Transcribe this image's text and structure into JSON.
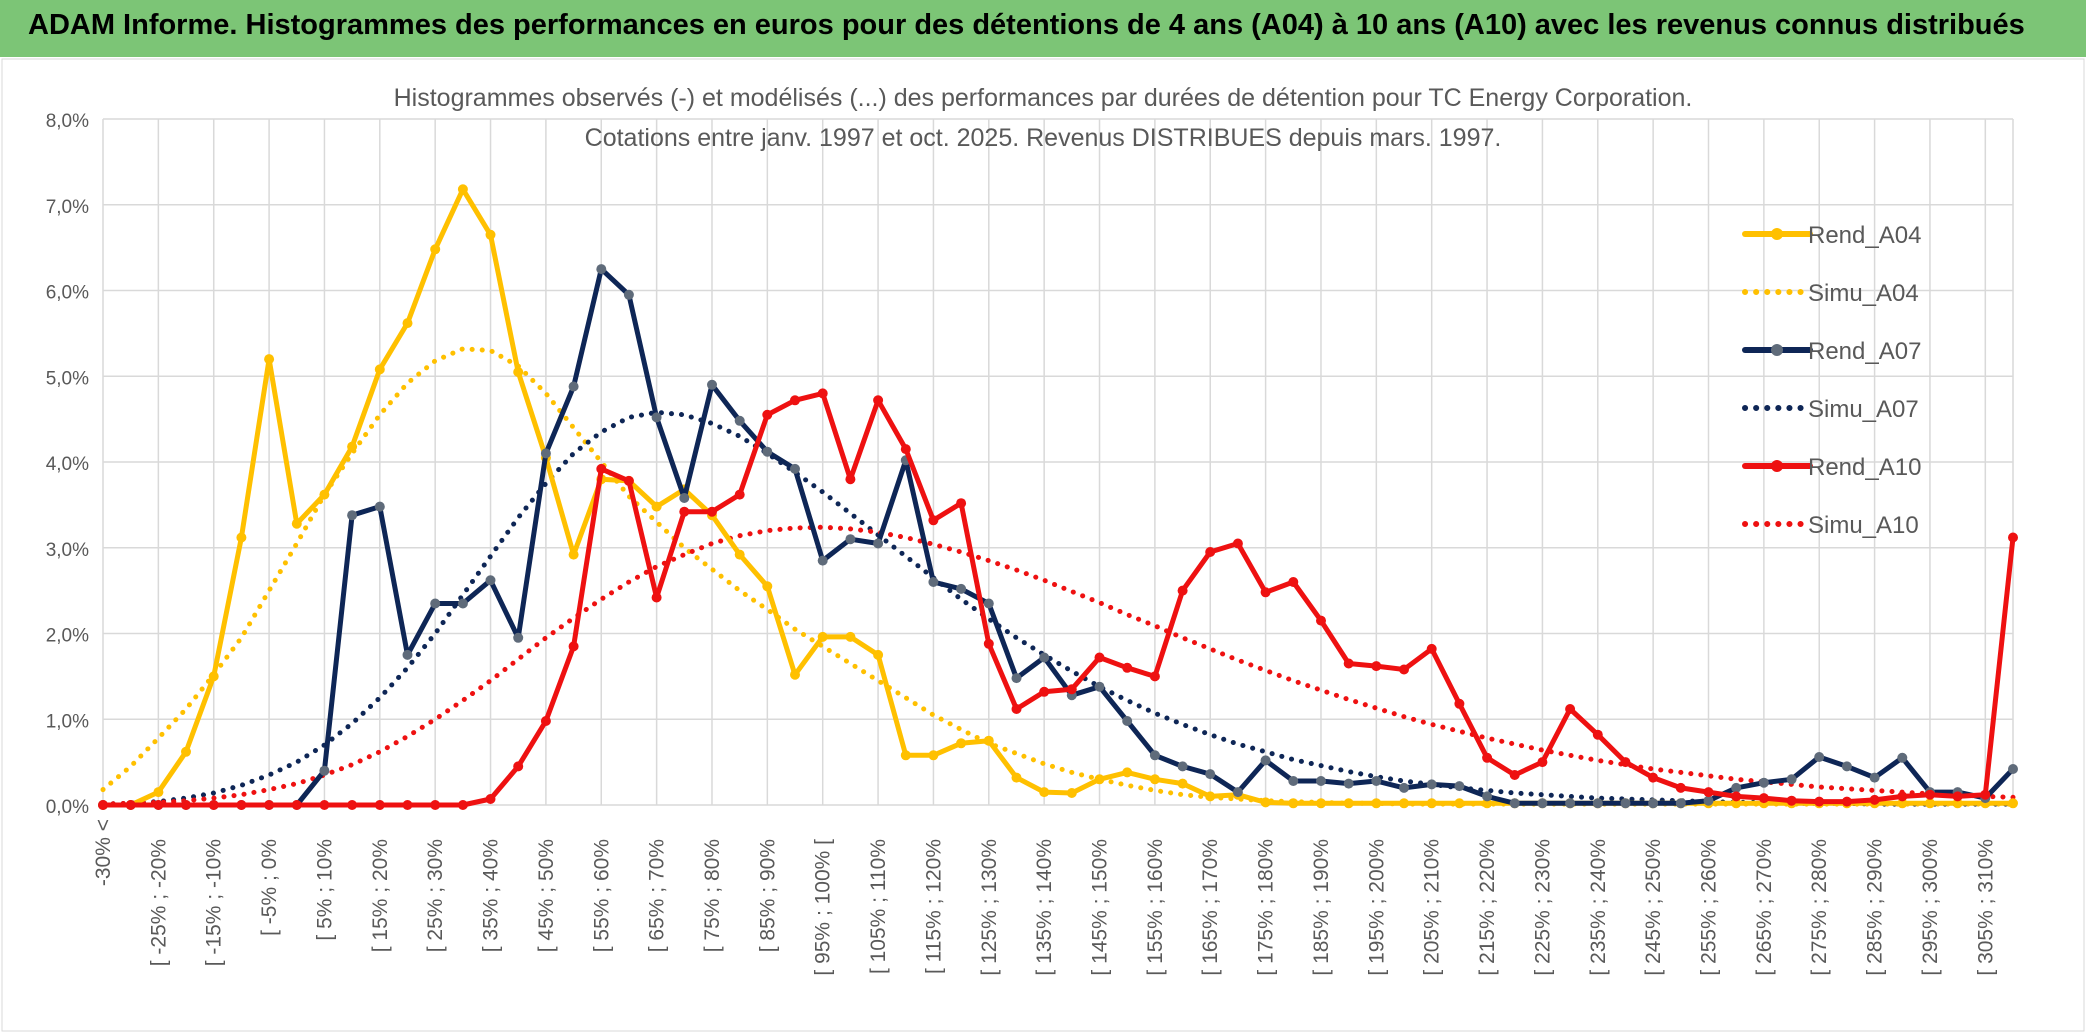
{
  "banner": {
    "title": "ADAM Informe. Histogrammes des performances en euros pour des détentions de 4 ans (A04) à 10 ans (A10) avec les revenus connus distribués"
  },
  "colors": {
    "banner_bg": "#7CC576",
    "a04": "#FFC000",
    "a07": "#0E2656",
    "a07_marker": "#5F6B7A",
    "a10": "#EE1111",
    "grid": "#D9D9D9",
    "axis_text": "#595959"
  },
  "chart_data": {
    "type": "line",
    "title": "Histogrammes observés (-) et modélisés (...) des performances par durées de détention pour TC Energy Corporation.",
    "subtitle": "Cotations entre janv. 1997 et oct. 2025. Revenus DISTRIBUES depuis mars. 1997.",
    "xlabel": "",
    "ylabel": "",
    "ylim": [
      0,
      8
    ],
    "yticks": [
      0,
      1,
      2,
      3,
      4,
      5,
      6,
      7,
      8
    ],
    "ytick_labels": [
      "0,0%",
      "1,0%",
      "2,0%",
      "3,0%",
      "4,0%",
      "5,0%",
      "6,0%",
      "7,0%",
      "8,0%"
    ],
    "grid": true,
    "legend_position": "right",
    "x_tick_labels": [
      "-30% <",
      "[ -25% ; -20%",
      "[ -15% ; -10%",
      "[ -5% ; 0%",
      "[ 5% ; 10%",
      "[ 15% ; 20%",
      "[ 25% ; 30%",
      "[ 35% ; 40%",
      "[ 45% ; 50%",
      "[ 55% ; 60%",
      "[ 65% ; 70%",
      "[ 75% ; 80%",
      "[ 85% ; 90%",
      "[ 95% ; 100% [",
      "[ 105% ; 110%",
      "[ 115% ; 120%",
      "[ 125% ; 130%",
      "[ 135% ; 140%",
      "[ 145% ; 150%",
      "[ 155% ; 160%",
      "[ 165% ; 170%",
      "[ 175% ; 180%",
      "[ 185% ; 190%",
      "[ 195% ; 200%",
      "[ 205% ; 210%",
      "[ 215% ; 220%",
      "[ 225% ; 230%",
      "[ 235% ; 240%",
      "[ 245% ; 250%",
      "[ 255% ; 260%",
      "[ 265% ; 270%",
      "[ 275% ; 280%",
      "[ 285% ; 290%",
      "[ 295% ; 300%",
      "[ 305% ; 310%"
    ],
    "series": [
      {
        "name": "Rend_A04",
        "style": "solid",
        "color": "#FFC000",
        "values": [
          0,
          0,
          0.15,
          0.62,
          1.5,
          3.12,
          5.2,
          3.28,
          3.62,
          4.18,
          5.08,
          5.62,
          6.48,
          7.18,
          6.65,
          5.05,
          4.05,
          2.92,
          3.8,
          3.78,
          3.48,
          3.68,
          3.38,
          2.92,
          2.55,
          1.52,
          1.96,
          1.96,
          1.75,
          0.58,
          0.58,
          0.72,
          0.75,
          0.32,
          0.15,
          0.14,
          0.3,
          0.38,
          0.3,
          0.25,
          0.1,
          0.12,
          0.03,
          0.02,
          0.02,
          0.02,
          0.02,
          0.02,
          0.02,
          0.02,
          0.02,
          0.02,
          0.02,
          0.02,
          0.02,
          0.02,
          0.02,
          0.02,
          0.02,
          0.02,
          0.02,
          0.02,
          0.02,
          0.02,
          0.02,
          0.02,
          0.02,
          0.02,
          0.02,
          0.02
        ]
      },
      {
        "name": "Simu_A04",
        "style": "dotted",
        "color": "#FFC000",
        "values": [
          0.18,
          0.45,
          0.78,
          1.12,
          1.52,
          1.95,
          2.5,
          3.05,
          3.62,
          4.1,
          4.55,
          4.92,
          5.18,
          5.32,
          5.3,
          5.12,
          4.8,
          4.4,
          4.0,
          3.6,
          3.3,
          3.0,
          2.75,
          2.5,
          2.28,
          2.05,
          1.85,
          1.65,
          1.45,
          1.25,
          1.05,
          0.88,
          0.72,
          0.6,
          0.48,
          0.38,
          0.3,
          0.23,
          0.17,
          0.12,
          0.09,
          0.07,
          0.05,
          0.04,
          0.03,
          0.02,
          0.02,
          0.01,
          0.01,
          0.01,
          0.01,
          0.01,
          0.01,
          0.01,
          0.01,
          0.01,
          0.01,
          0.01,
          0.01,
          0.01,
          0.01,
          0.01,
          0.01,
          0.01,
          0.01,
          0.01,
          0.01,
          0.01,
          0.01,
          0.01
        ]
      },
      {
        "name": "Rend_A07",
        "style": "solid",
        "color": "#0E2656",
        "values": [
          0,
          0,
          0,
          0,
          0,
          0,
          0,
          0,
          0.4,
          3.38,
          3.48,
          1.75,
          2.35,
          2.35,
          2.62,
          1.95,
          4.1,
          4.88,
          6.25,
          5.95,
          4.52,
          3.58,
          4.9,
          4.48,
          4.12,
          3.92,
          2.85,
          3.1,
          3.05,
          4.02,
          2.6,
          2.52,
          2.35,
          1.48,
          1.72,
          1.28,
          1.38,
          0.98,
          0.58,
          0.45,
          0.36,
          0.15,
          0.52,
          0.28,
          0.28,
          0.25,
          0.28,
          0.2,
          0.24,
          0.22,
          0.1,
          0.02,
          0.02,
          0.02,
          0.02,
          0.02,
          0.02,
          0.02,
          0.05,
          0.2,
          0.26,
          0.3,
          0.56,
          0.45,
          0.32,
          0.55,
          0.15,
          0.15,
          0.08,
          0.42
        ]
      },
      {
        "name": "Simu_A07",
        "style": "dotted",
        "color": "#0E2656",
        "values": [
          0.01,
          0.02,
          0.04,
          0.08,
          0.14,
          0.23,
          0.35,
          0.5,
          0.7,
          0.95,
          1.25,
          1.6,
          2.0,
          2.45,
          2.9,
          3.35,
          3.75,
          4.1,
          4.35,
          4.52,
          4.58,
          4.55,
          4.45,
          4.3,
          4.1,
          3.88,
          3.65,
          3.4,
          3.15,
          2.9,
          2.65,
          2.4,
          2.17,
          1.95,
          1.75,
          1.56,
          1.38,
          1.22,
          1.07,
          0.94,
          0.82,
          0.71,
          0.62,
          0.53,
          0.46,
          0.39,
          0.33,
          0.28,
          0.24,
          0.2,
          0.17,
          0.14,
          0.12,
          0.1,
          0.08,
          0.07,
          0.06,
          0.05,
          0.04,
          0.03,
          0.03,
          0.02,
          0.02,
          0.02,
          0.01,
          0.01,
          0.01,
          0.01,
          0.01,
          0.01
        ]
      },
      {
        "name": "Rend_A10",
        "style": "solid",
        "color": "#EE1111",
        "values": [
          0,
          0,
          0,
          0,
          0,
          0,
          0,
          0,
          0,
          0,
          0,
          0,
          0,
          0,
          0.07,
          0.45,
          0.98,
          1.85,
          3.92,
          3.78,
          2.42,
          3.42,
          3.42,
          3.62,
          4.55,
          4.72,
          4.8,
          3.8,
          4.72,
          4.15,
          3.32,
          3.52,
          1.88,
          1.12,
          1.32,
          1.35,
          1.72,
          1.6,
          1.5,
          2.5,
          2.95,
          3.05,
          2.48,
          2.6,
          2.15,
          1.65,
          1.62,
          1.58,
          1.82,
          1.18,
          0.55,
          0.35,
          0.5,
          1.12,
          0.82,
          0.5,
          0.32,
          0.2,
          0.15,
          0.1,
          0.08,
          0.05,
          0.04,
          0.04,
          0.06,
          0.1,
          0.12,
          0.1,
          0.12,
          3.12
        ]
      },
      {
        "name": "Simu_A10",
        "style": "dotted",
        "color": "#EE1111",
        "values": [
          0.01,
          0.02,
          0.03,
          0.05,
          0.08,
          0.12,
          0.18,
          0.25,
          0.35,
          0.47,
          0.62,
          0.8,
          1.0,
          1.22,
          1.45,
          1.7,
          1.95,
          2.18,
          2.4,
          2.6,
          2.78,
          2.92,
          3.05,
          3.14,
          3.2,
          3.23,
          3.24,
          3.22,
          3.18,
          3.12,
          3.04,
          2.95,
          2.85,
          2.74,
          2.62,
          2.49,
          2.36,
          2.22,
          2.09,
          1.95,
          1.82,
          1.69,
          1.57,
          1.45,
          1.34,
          1.23,
          1.13,
          1.03,
          0.94,
          0.86,
          0.78,
          0.71,
          0.64,
          0.58,
          0.52,
          0.47,
          0.42,
          0.38,
          0.34,
          0.3,
          0.27,
          0.24,
          0.21,
          0.19,
          0.17,
          0.15,
          0.13,
          0.12,
          0.1,
          0.09
        ]
      }
    ]
  }
}
